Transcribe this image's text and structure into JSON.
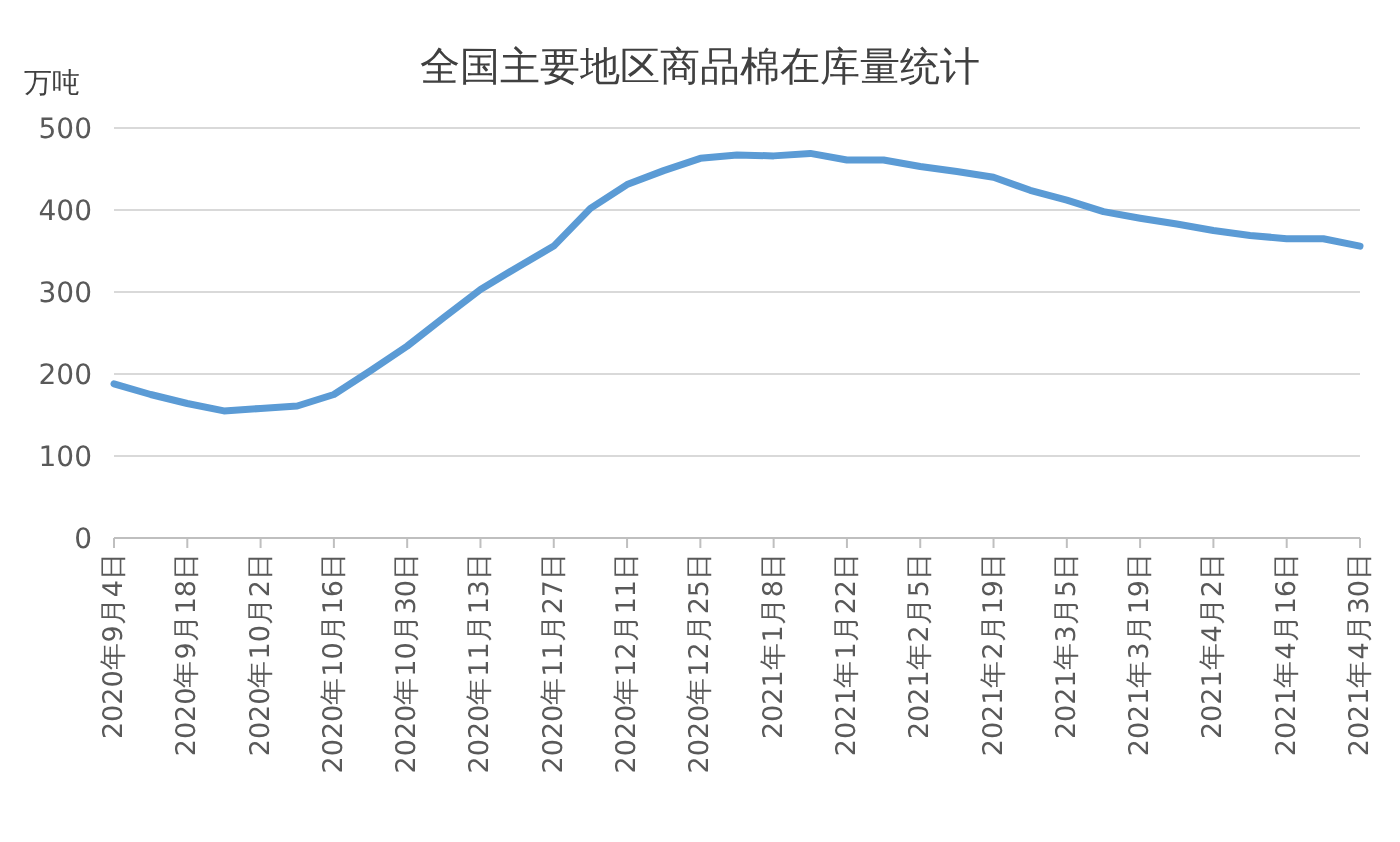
{
  "chart_data": {
    "type": "line",
    "title": "全国主要地区商品棉在库量统计",
    "ylabel": "万吨",
    "x": [
      "2020-09-04",
      "2020-09-11",
      "2020-09-18",
      "2020-09-25",
      "2020-10-02",
      "2020-10-09",
      "2020-10-16",
      "2020-10-23",
      "2020-10-30",
      "2020-11-06",
      "2020-11-13",
      "2020-11-20",
      "2020-11-27",
      "2020-12-04",
      "2020-12-11",
      "2020-12-18",
      "2020-12-25",
      "2021-01-01",
      "2021-01-08",
      "2021-01-15",
      "2021-01-22",
      "2021-01-29",
      "2021-02-05",
      "2021-02-12",
      "2021-02-19",
      "2021-02-26",
      "2021-03-05",
      "2021-03-12",
      "2021-03-19",
      "2021-03-26",
      "2021-04-02",
      "2021-04-09",
      "2021-04-16",
      "2021-04-23",
      "2021-04-30"
    ],
    "series": [
      {
        "color": "#5b9bd5",
        "values": [
          188,
          175,
          164,
          155,
          158,
          161,
          175,
          204,
          234,
          269,
          303,
          330,
          356,
          402,
          431,
          448,
          463,
          467,
          466,
          469,
          461,
          461,
          453,
          447,
          440,
          424,
          412,
          398,
          390,
          383,
          375,
          369,
          365,
          365,
          356
        ]
      }
    ],
    "xlim": [
      "2020-09-04",
      "2021-04-30"
    ],
    "xticks": [
      {
        "value": "2020-09-04",
        "label": "2020年9月4日"
      },
      {
        "value": "2020-09-18",
        "label": "2020年9月18日"
      },
      {
        "value": "2020-10-02",
        "label": "2020年10月2日"
      },
      {
        "value": "2020-10-16",
        "label": "2020年10月16日"
      },
      {
        "value": "2020-10-30",
        "label": "2020年10月30日"
      },
      {
        "value": "2020-11-13",
        "label": "2020年11月13日"
      },
      {
        "value": "2020-11-27",
        "label": "2020年11月27日"
      },
      {
        "value": "2020-12-11",
        "label": "2020年12月11日"
      },
      {
        "value": "2020-12-25",
        "label": "2020年12月25日"
      },
      {
        "value": "2021-01-08",
        "label": "2021年1月8日"
      },
      {
        "value": "2021-01-22",
        "label": "2021年1月22日"
      },
      {
        "value": "2021-02-05",
        "label": "2021年2月5日"
      },
      {
        "value": "2021-02-19",
        "label": "2021年2月19日"
      },
      {
        "value": "2021-03-05",
        "label": "2021年3月5日"
      },
      {
        "value": "2021-03-19",
        "label": "2021年3月19日"
      },
      {
        "value": "2021-04-02",
        "label": "2021年4月2日"
      },
      {
        "value": "2021-04-16",
        "label": "2021年4月16日"
      },
      {
        "value": "2021-04-30",
        "label": "2021年4月30日"
      }
    ],
    "ylim": [
      0,
      500
    ],
    "yticks": [
      0,
      100,
      200,
      300,
      400,
      500
    ],
    "grid": "y",
    "marker": "none",
    "line_style": "solid"
  }
}
